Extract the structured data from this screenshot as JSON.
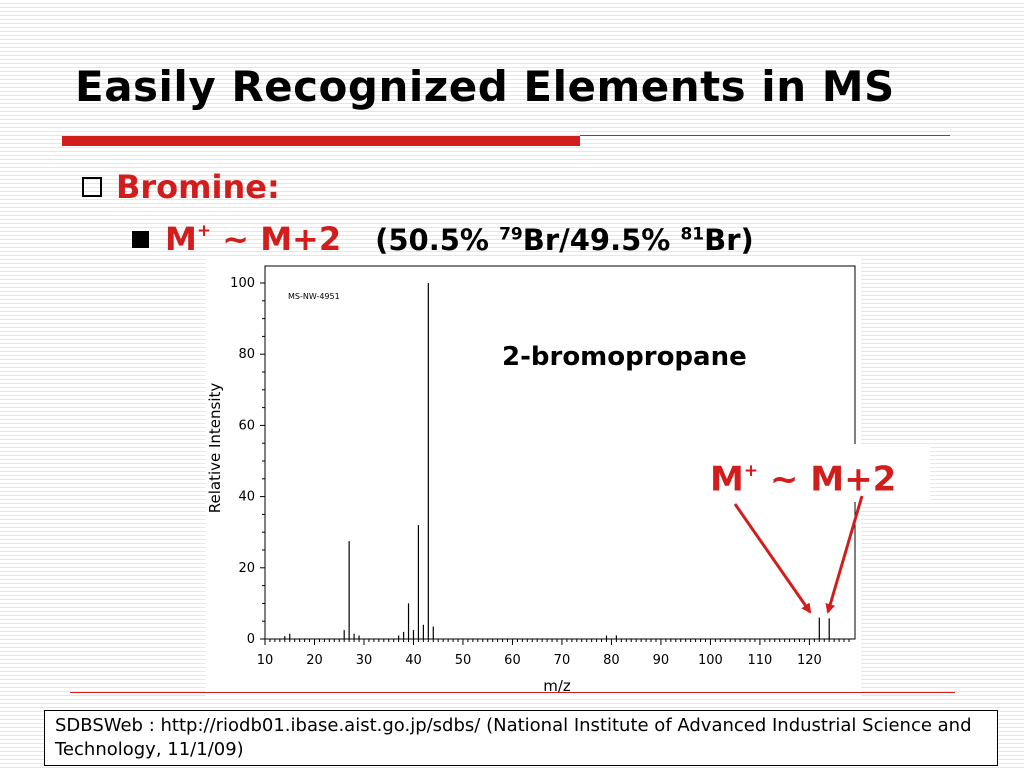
{
  "slide": {
    "title": "Easily Recognized Elements in MS",
    "bullet1": "Bromine:",
    "bullet2": {
      "mplus_pre": "M",
      "mplus_sup": "+",
      "mplus_post": " ~ M+2",
      "iso_a": "(50.5% ",
      "iso_sup1": "79",
      "iso_b": "Br/49.5% ",
      "iso_sup2": "81",
      "iso_c": "Br)"
    },
    "compound": "2-bromopropane",
    "callout": {
      "pre": "M",
      "sup": "+",
      "post": " ~ M+2"
    },
    "citation": "SDBSWeb : http://riodb01.ibase.aist.go.jp/sdbs/ (National Institute of Advanced Industrial Science and Technology, 11/1/09)",
    "accent_color": "#d21d1d"
  },
  "chart_data": {
    "type": "bar",
    "title": "MS-NW-4951",
    "xlabel": "m/z",
    "ylabel": "Relative Intensity",
    "xlim": [
      10,
      128
    ],
    "ylim": [
      0,
      100
    ],
    "xticks": [
      10,
      20,
      30,
      40,
      50,
      60,
      70,
      80,
      90,
      100,
      110,
      120
    ],
    "yticks": [
      0,
      20,
      40,
      60,
      80,
      100
    ],
    "grid": false,
    "peaks": [
      {
        "x": 14,
        "y": 0.8
      },
      {
        "x": 15,
        "y": 1.5
      },
      {
        "x": 26,
        "y": 2.5
      },
      {
        "x": 27,
        "y": 27.5
      },
      {
        "x": 28,
        "y": 1.5
      },
      {
        "x": 29,
        "y": 1.0
      },
      {
        "x": 37,
        "y": 1.0
      },
      {
        "x": 38,
        "y": 2.0
      },
      {
        "x": 39,
        "y": 10.0
      },
      {
        "x": 40,
        "y": 2.5
      },
      {
        "x": 41,
        "y": 32.0
      },
      {
        "x": 42,
        "y": 4.0
      },
      {
        "x": 43,
        "y": 100.0
      },
      {
        "x": 44,
        "y": 3.5
      },
      {
        "x": 79,
        "y": 1.0
      },
      {
        "x": 81,
        "y": 1.0
      },
      {
        "x": 122,
        "y": 6.0
      },
      {
        "x": 124,
        "y": 5.8
      }
    ]
  }
}
